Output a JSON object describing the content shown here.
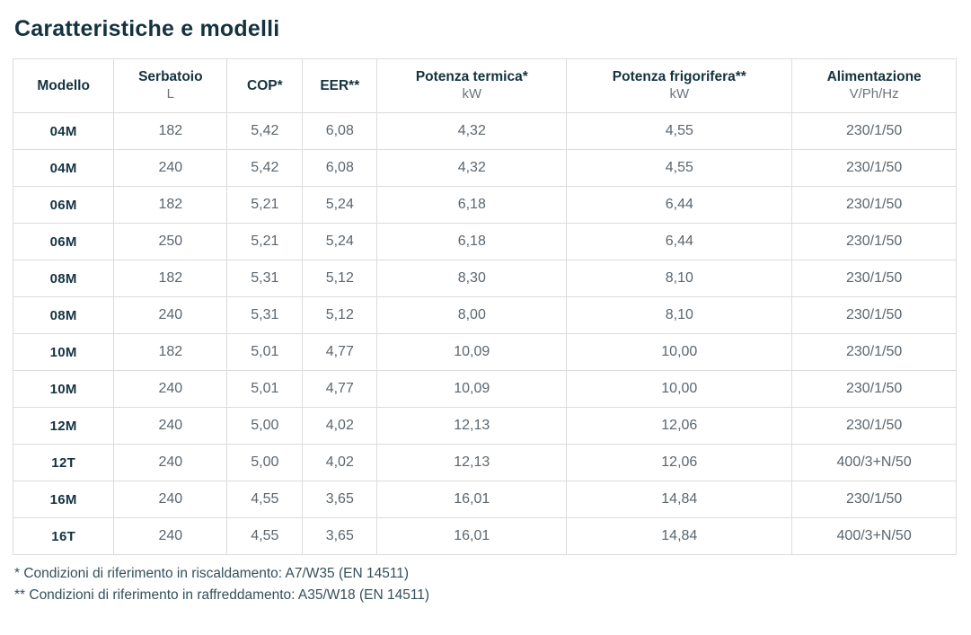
{
  "page": {
    "title": "Caratteristiche e modelli",
    "footnotes": [
      "* Condizioni di riferimento in riscaldamento: A7/W35 (EN 14511)",
      "** Condizioni di riferimento in raffreddamento: A35/W18 (EN 14511)"
    ]
  },
  "colors": {
    "heading_text": "#14333f",
    "body_text": "#5b666e",
    "unit_text": "#6b747b",
    "footnote_text": "#33505c",
    "table_border": "#dcdcdc",
    "background": "#ffffff"
  },
  "table": {
    "columns": [
      {
        "label": "Modello",
        "unit": ""
      },
      {
        "label": "Serbatoio",
        "unit": "L"
      },
      {
        "label": "COP*",
        "unit": ""
      },
      {
        "label": "EER**",
        "unit": ""
      },
      {
        "label": "Potenza termica*",
        "unit": "kW"
      },
      {
        "label": "Potenza frigorifera**",
        "unit": "kW"
      },
      {
        "label": "Alimentazione",
        "unit": "V/Ph/Hz"
      }
    ],
    "rows": [
      {
        "modello": "04M",
        "serbatoio": "182",
        "cop": "5,42",
        "eer": "6,08",
        "potenza_termica": "4,32",
        "potenza_frigorifera": "4,55",
        "alimentazione": "230/1/50"
      },
      {
        "modello": "04M",
        "serbatoio": "240",
        "cop": "5,42",
        "eer": "6,08",
        "potenza_termica": "4,32",
        "potenza_frigorifera": "4,55",
        "alimentazione": "230/1/50"
      },
      {
        "modello": "06M",
        "serbatoio": "182",
        "cop": "5,21",
        "eer": "5,24",
        "potenza_termica": "6,18",
        "potenza_frigorifera": "6,44",
        "alimentazione": "230/1/50"
      },
      {
        "modello": "06M",
        "serbatoio": "250",
        "cop": "5,21",
        "eer": "5,24",
        "potenza_termica": "6,18",
        "potenza_frigorifera": "6,44",
        "alimentazione": "230/1/50"
      },
      {
        "modello": "08M",
        "serbatoio": "182",
        "cop": "5,31",
        "eer": "5,12",
        "potenza_termica": "8,30",
        "potenza_frigorifera": "8,10",
        "alimentazione": "230/1/50"
      },
      {
        "modello": "08M",
        "serbatoio": "240",
        "cop": "5,31",
        "eer": "5,12",
        "potenza_termica": "8,00",
        "potenza_frigorifera": "8,10",
        "alimentazione": "230/1/50"
      },
      {
        "modello": "10M",
        "serbatoio": "182",
        "cop": "5,01",
        "eer": "4,77",
        "potenza_termica": "10,09",
        "potenza_frigorifera": "10,00",
        "alimentazione": "230/1/50"
      },
      {
        "modello": "10M",
        "serbatoio": "240",
        "cop": "5,01",
        "eer": "4,77",
        "potenza_termica": "10,09",
        "potenza_frigorifera": "10,00",
        "alimentazione": "230/1/50"
      },
      {
        "modello": "12M",
        "serbatoio": "240",
        "cop": "5,00",
        "eer": "4,02",
        "potenza_termica": "12,13",
        "potenza_frigorifera": "12,06",
        "alimentazione": "230/1/50"
      },
      {
        "modello": "12T",
        "serbatoio": "240",
        "cop": "5,00",
        "eer": "4,02",
        "potenza_termica": "12,13",
        "potenza_frigorifera": "12,06",
        "alimentazione": "400/3+N/50"
      },
      {
        "modello": "16M",
        "serbatoio": "240",
        "cop": "4,55",
        "eer": "3,65",
        "potenza_termica": "16,01",
        "potenza_frigorifera": "14,84",
        "alimentazione": "230/1/50"
      },
      {
        "modello": "16T",
        "serbatoio": "240",
        "cop": "4,55",
        "eer": "3,65",
        "potenza_termica": "16,01",
        "potenza_frigorifera": "14,84",
        "alimentazione": "400/3+N/50"
      }
    ],
    "row_field_order": [
      "modello",
      "serbatoio",
      "cop",
      "eer",
      "potenza_termica",
      "potenza_frigorifera",
      "alimentazione"
    ]
  }
}
